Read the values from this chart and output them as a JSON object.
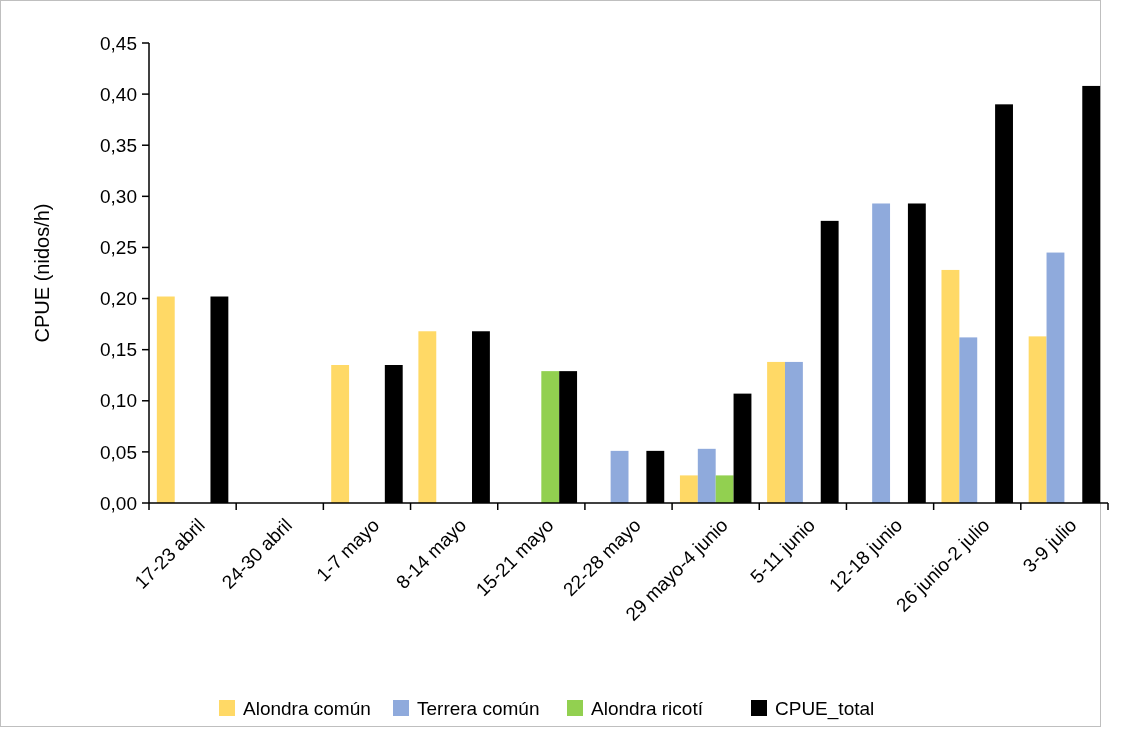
{
  "chart_data": {
    "type": "bar",
    "ylabel": "CPUE (nidos/h)",
    "categories": [
      "17-23 abril",
      "24-30 abril",
      "1-7 mayo",
      "8-14 mayo",
      "15-21 mayo",
      "22-28 mayo",
      "29 mayo-4 junio",
      "5-11 junio",
      "12-18 junio",
      "26 junio-2 julio",
      "3-9 julio"
    ],
    "series": [
      {
        "name": "Alondra común",
        "color": "#ffd966",
        "values": [
          0.202,
          0,
          0.135,
          0.168,
          0,
          0,
          0.027,
          0.138,
          0,
          0.228,
          0.163
        ]
      },
      {
        "name": "Terrera común",
        "color": "#8faadc",
        "values": [
          0,
          0,
          0,
          0,
          0,
          0.051,
          0.053,
          0.138,
          0.293,
          0.162,
          0.245
        ]
      },
      {
        "name": "Alondra ricotí",
        "color": "#92d050",
        "values": [
          0,
          0,
          0,
          0,
          0.129,
          0,
          0.027,
          0,
          0,
          0,
          0
        ]
      },
      {
        "name": "CPUE_total",
        "color": "#000000",
        "values": [
          0.202,
          0,
          0.135,
          0.168,
          0.129,
          0.051,
          0.107,
          0.276,
          0.293,
          0.39,
          0.408
        ]
      }
    ],
    "ylim": [
      0,
      0.45
    ],
    "yticks": [
      {
        "value": 0,
        "label": "0,00"
      },
      {
        "value": 0.05,
        "label": "0,05"
      },
      {
        "value": 0.1,
        "label": "0,10"
      },
      {
        "value": 0.15,
        "label": "0,15"
      },
      {
        "value": 0.2,
        "label": "0,20"
      },
      {
        "value": 0.25,
        "label": "0,25"
      },
      {
        "value": 0.3,
        "label": "0,30"
      },
      {
        "value": 0.35,
        "label": "0,35"
      },
      {
        "value": 0.4,
        "label": "0,40"
      },
      {
        "value": 0.45,
        "label": "0,45"
      }
    ],
    "grid": false,
    "legend": "bottom"
  }
}
